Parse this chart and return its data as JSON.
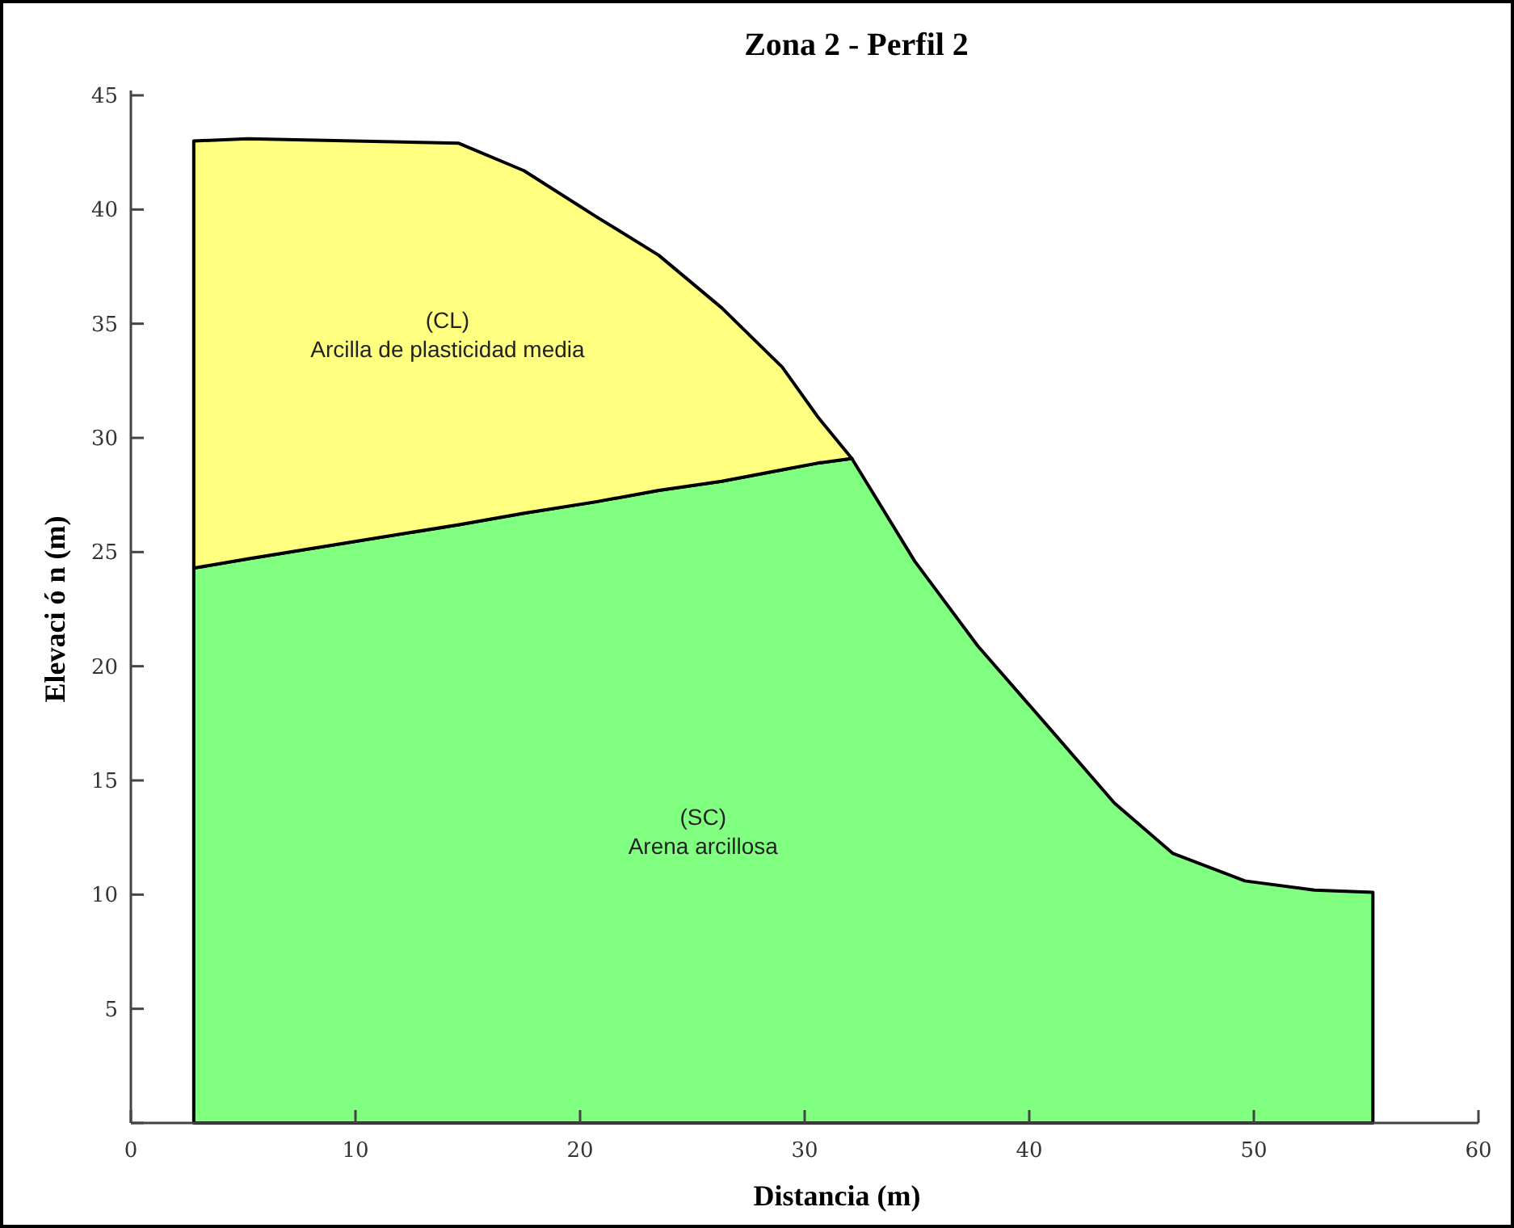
{
  "chart_data": {
    "type": "area",
    "stacked": true,
    "title": "Zona 2 - Perfil 2",
    "xlabel": "Distancia (m)",
    "ylabel": "Elevaci ó n (m)",
    "xlim": [
      0,
      60
    ],
    "ylim": [
      0,
      45
    ],
    "xticks": [
      0,
      10,
      20,
      30,
      40,
      50,
      60
    ],
    "yticks": [
      {
        "value": 0,
        "label": null
      },
      5,
      10,
      15,
      20,
      25,
      30,
      35,
      40,
      45
    ],
    "grid": false,
    "legend": false,
    "x": [
      2.8,
      5.2,
      14.6,
      17.5,
      20.7,
      23.5,
      26.3,
      29.0,
      30.6,
      32.1,
      34.9,
      37.7,
      40.8,
      43.8,
      46.4,
      49.6,
      52.7,
      55.3
    ],
    "series": [
      {
        "name": "(SC)\nArena arcillosa",
        "color": "#80ff80",
        "values": [
          24.3,
          24.7,
          26.2,
          26.7,
          27.2,
          27.7,
          28.1,
          28.6,
          28.9,
          29.1,
          24.6,
          20.9,
          17.4,
          14.0,
          11.8,
          10.6,
          10.2,
          10.1
        ]
      },
      {
        "name": "(CL)\nArcilla de plasticidad media",
        "color": "#ffff80",
        "values": [
          18.7,
          18.4,
          16.7,
          15.0,
          12.5,
          10.3,
          7.6,
          4.5,
          2.0,
          0,
          null,
          null,
          null,
          null,
          null,
          null,
          null,
          null
        ]
      }
    ]
  }
}
